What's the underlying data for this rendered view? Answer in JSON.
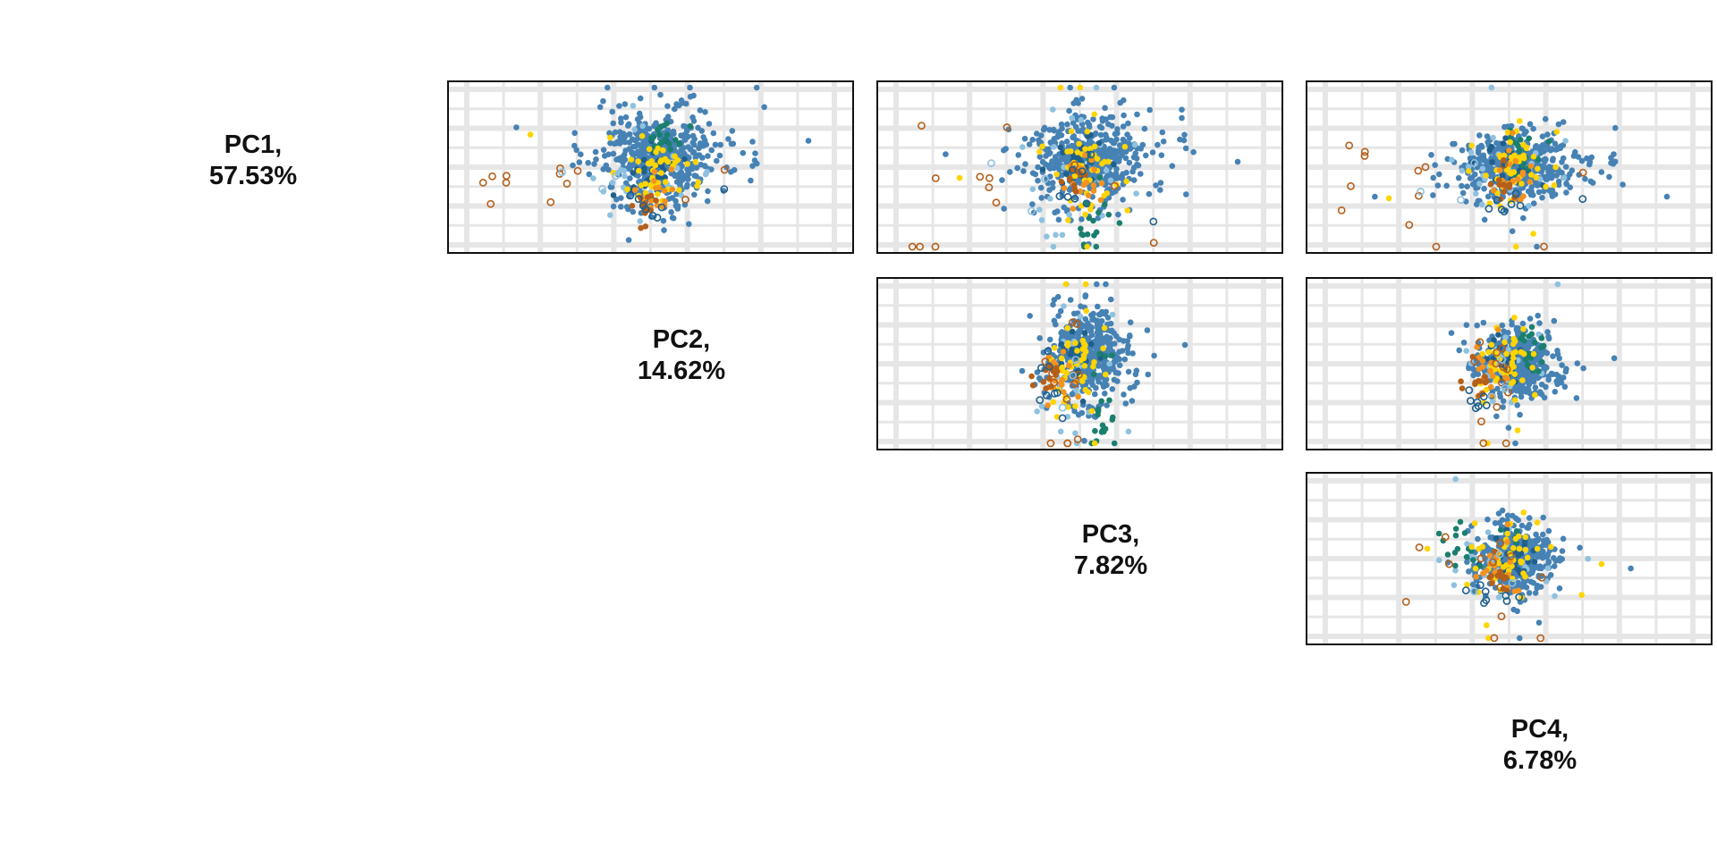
{
  "diagonal": [
    {
      "line1": "PC1,",
      "line2": "57.53%"
    },
    {
      "line1": "PC2,",
      "line2": "14.62%"
    },
    {
      "line1": "PC3,",
      "line2": "7.82%"
    },
    {
      "line1": "PC4,",
      "line2": "6.78%"
    }
  ],
  "colors": {
    "main": "#4682b4",
    "light_blue": "#8ec1e0",
    "dark_blue": "#1f5f8b",
    "teal": "#1a7f6e",
    "yellow": "#ffd400",
    "orange": "#f2921f",
    "brown": "#b45f1a",
    "grid": "#e6e6e6",
    "border": "#111111"
  },
  "chart_data": {
    "type": "scatter",
    "title": "",
    "xlabel": "",
    "ylabel": "",
    "grid": true,
    "legend": "none",
    "components": [
      "PC1",
      "PC2",
      "PC3",
      "PC4"
    ],
    "variance_explained_percent": [
      57.53,
      14.62,
      7.82,
      6.78
    ],
    "layout": "upper-triangle scatter matrix",
    "panels": [
      {
        "x": "PC1",
        "y": "PC2",
        "xlim": [
          -12,
          12
        ],
        "ylim": [
          -4,
          4
        ]
      },
      {
        "x": "PC1",
        "y": "PC3",
        "xlim": [
          -12,
          12
        ],
        "ylim": [
          -4,
          4
        ]
      },
      {
        "x": "PC1",
        "y": "PC4",
        "xlim": [
          -12,
          12
        ],
        "ylim": [
          -4,
          4
        ]
      },
      {
        "x": "PC2",
        "y": "PC3",
        "xlim": [
          -12,
          12
        ],
        "ylim": [
          -4,
          4
        ]
      },
      {
        "x": "PC2",
        "y": "PC4",
        "xlim": [
          -12,
          12
        ],
        "ylim": [
          -4,
          4
        ]
      },
      {
        "x": "PC3",
        "y": "PC4",
        "xlim": [
          -12,
          12
        ],
        "ylim": [
          -4,
          4
        ]
      }
    ],
    "groups": [
      {
        "color": "#4682b4",
        "marker": "filled",
        "count": 460,
        "center": [
          0.5,
          0.5,
          0.4,
          0.1
        ],
        "sd": [
          1.7,
          1.05,
          1.0,
          0.75
        ]
      },
      {
        "color": "#8ec1e0",
        "marker": "filled",
        "count": 24,
        "center": [
          -0.3,
          -0.3,
          -1.4,
          -0.1
        ],
        "sd": [
          2.0,
          0.9,
          1.7,
          0.9
        ]
      },
      {
        "color": "#1f5f8b",
        "marker": "filled",
        "count": 28,
        "center": [
          0.2,
          -0.1,
          0.3,
          0.0
        ],
        "sd": [
          0.7,
          0.5,
          0.7,
          0.6
        ]
      },
      {
        "color": "#1a7f6e",
        "marker": "filled",
        "count": 20,
        "center": [
          0.9,
          1.3,
          -1.5,
          0.9
        ],
        "sd": [
          0.6,
          0.4,
          1.2,
          0.6
        ]
      },
      {
        "color": "#ffd400",
        "marker": "filled",
        "count": 48,
        "center": [
          0.0,
          0.0,
          0.0,
          0.1
        ],
        "sd": [
          1.2,
          0.8,
          1.3,
          1.0
        ]
      },
      {
        "color": "#f2921f",
        "marker": "filled",
        "count": 18,
        "center": [
          0.2,
          -1.4,
          -0.5,
          -0.7
        ],
        "sd": [
          0.6,
          0.6,
          0.6,
          0.6
        ]
      },
      {
        "color": "#b45f1a",
        "marker": "filled",
        "count": 12,
        "center": [
          -0.2,
          -1.8,
          -0.6,
          -0.9
        ],
        "sd": [
          0.4,
          0.3,
          0.4,
          0.4
        ]
      },
      {
        "color": "#b45f1a",
        "marker": "hollow",
        "count": 13,
        "center": [
          -5.0,
          -0.8,
          -2.5,
          -1.3
        ],
        "sd": [
          3.5,
          0.8,
          2.5,
          1.3
        ]
      },
      {
        "color": "#1f5f8b",
        "marker": "hollow",
        "count": 8,
        "center": [
          -0.2,
          -1.6,
          -1.0,
          -1.8
        ],
        "sd": [
          0.8,
          0.4,
          0.8,
          0.4
        ]
      },
      {
        "color": "#8ec1e0",
        "marker": "hollow",
        "count": 3,
        "center": [
          -3.0,
          -0.9,
          -1.2,
          -1.0
        ],
        "sd": [
          1.5,
          0.5,
          1.0,
          0.5
        ]
      }
    ]
  }
}
